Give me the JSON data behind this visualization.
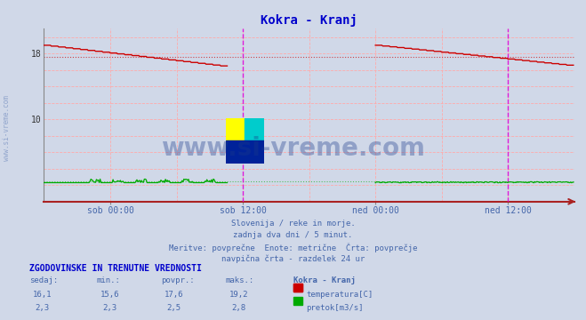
{
  "title": "Kokra - Kranj",
  "title_color": "#0000cc",
  "bg_color": "#d0d8e8",
  "plot_bg_color": "#d0d8e8",
  "ylim": [
    0,
    21
  ],
  "xlim": [
    0,
    576
  ],
  "xtick_positions": [
    72,
    216,
    360,
    504
  ],
  "xtick_labels": [
    "sob 00:00",
    "sob 12:00",
    "ned 00:00",
    "ned 12:00"
  ],
  "avg_temp": 17.6,
  "avg_flow": 2.5,
  "temp_color": "#cc0000",
  "flow_color": "#00aa00",
  "magenta_lines": [
    216,
    504
  ],
  "watermark_text": "www.si-vreme.com",
  "watermark_color": "#1a3a8a",
  "watermark_alpha": 0.35,
  "footer_lines": [
    "Slovenija / reke in morje.",
    "zadnja dva dni / 5 minut.",
    "Meritve: povprečne  Enote: metrične  Črta: povprečje",
    "navpična črta - razdelek 24 ur"
  ],
  "footer_color": "#4466aa",
  "table_header": "ZGODOVINSKE IN TRENUTNE VREDNOSTI",
  "table_header_color": "#0000cc",
  "col_headers": [
    "sedaj:",
    "min.:",
    "povpr.:",
    "maks.:",
    "Kokra - Kranj"
  ],
  "col_header_color": "#4466aa",
  "temp_row": [
    "16,1",
    "15,6",
    "17,6",
    "19,2"
  ],
  "flow_row": [
    "2,3",
    "2,3",
    "2,5",
    "2,8"
  ],
  "data_color": "#4466aa",
  "legend_temp_label": "temperatura[C]",
  "legend_flow_label": "pretok[m3/s]"
}
